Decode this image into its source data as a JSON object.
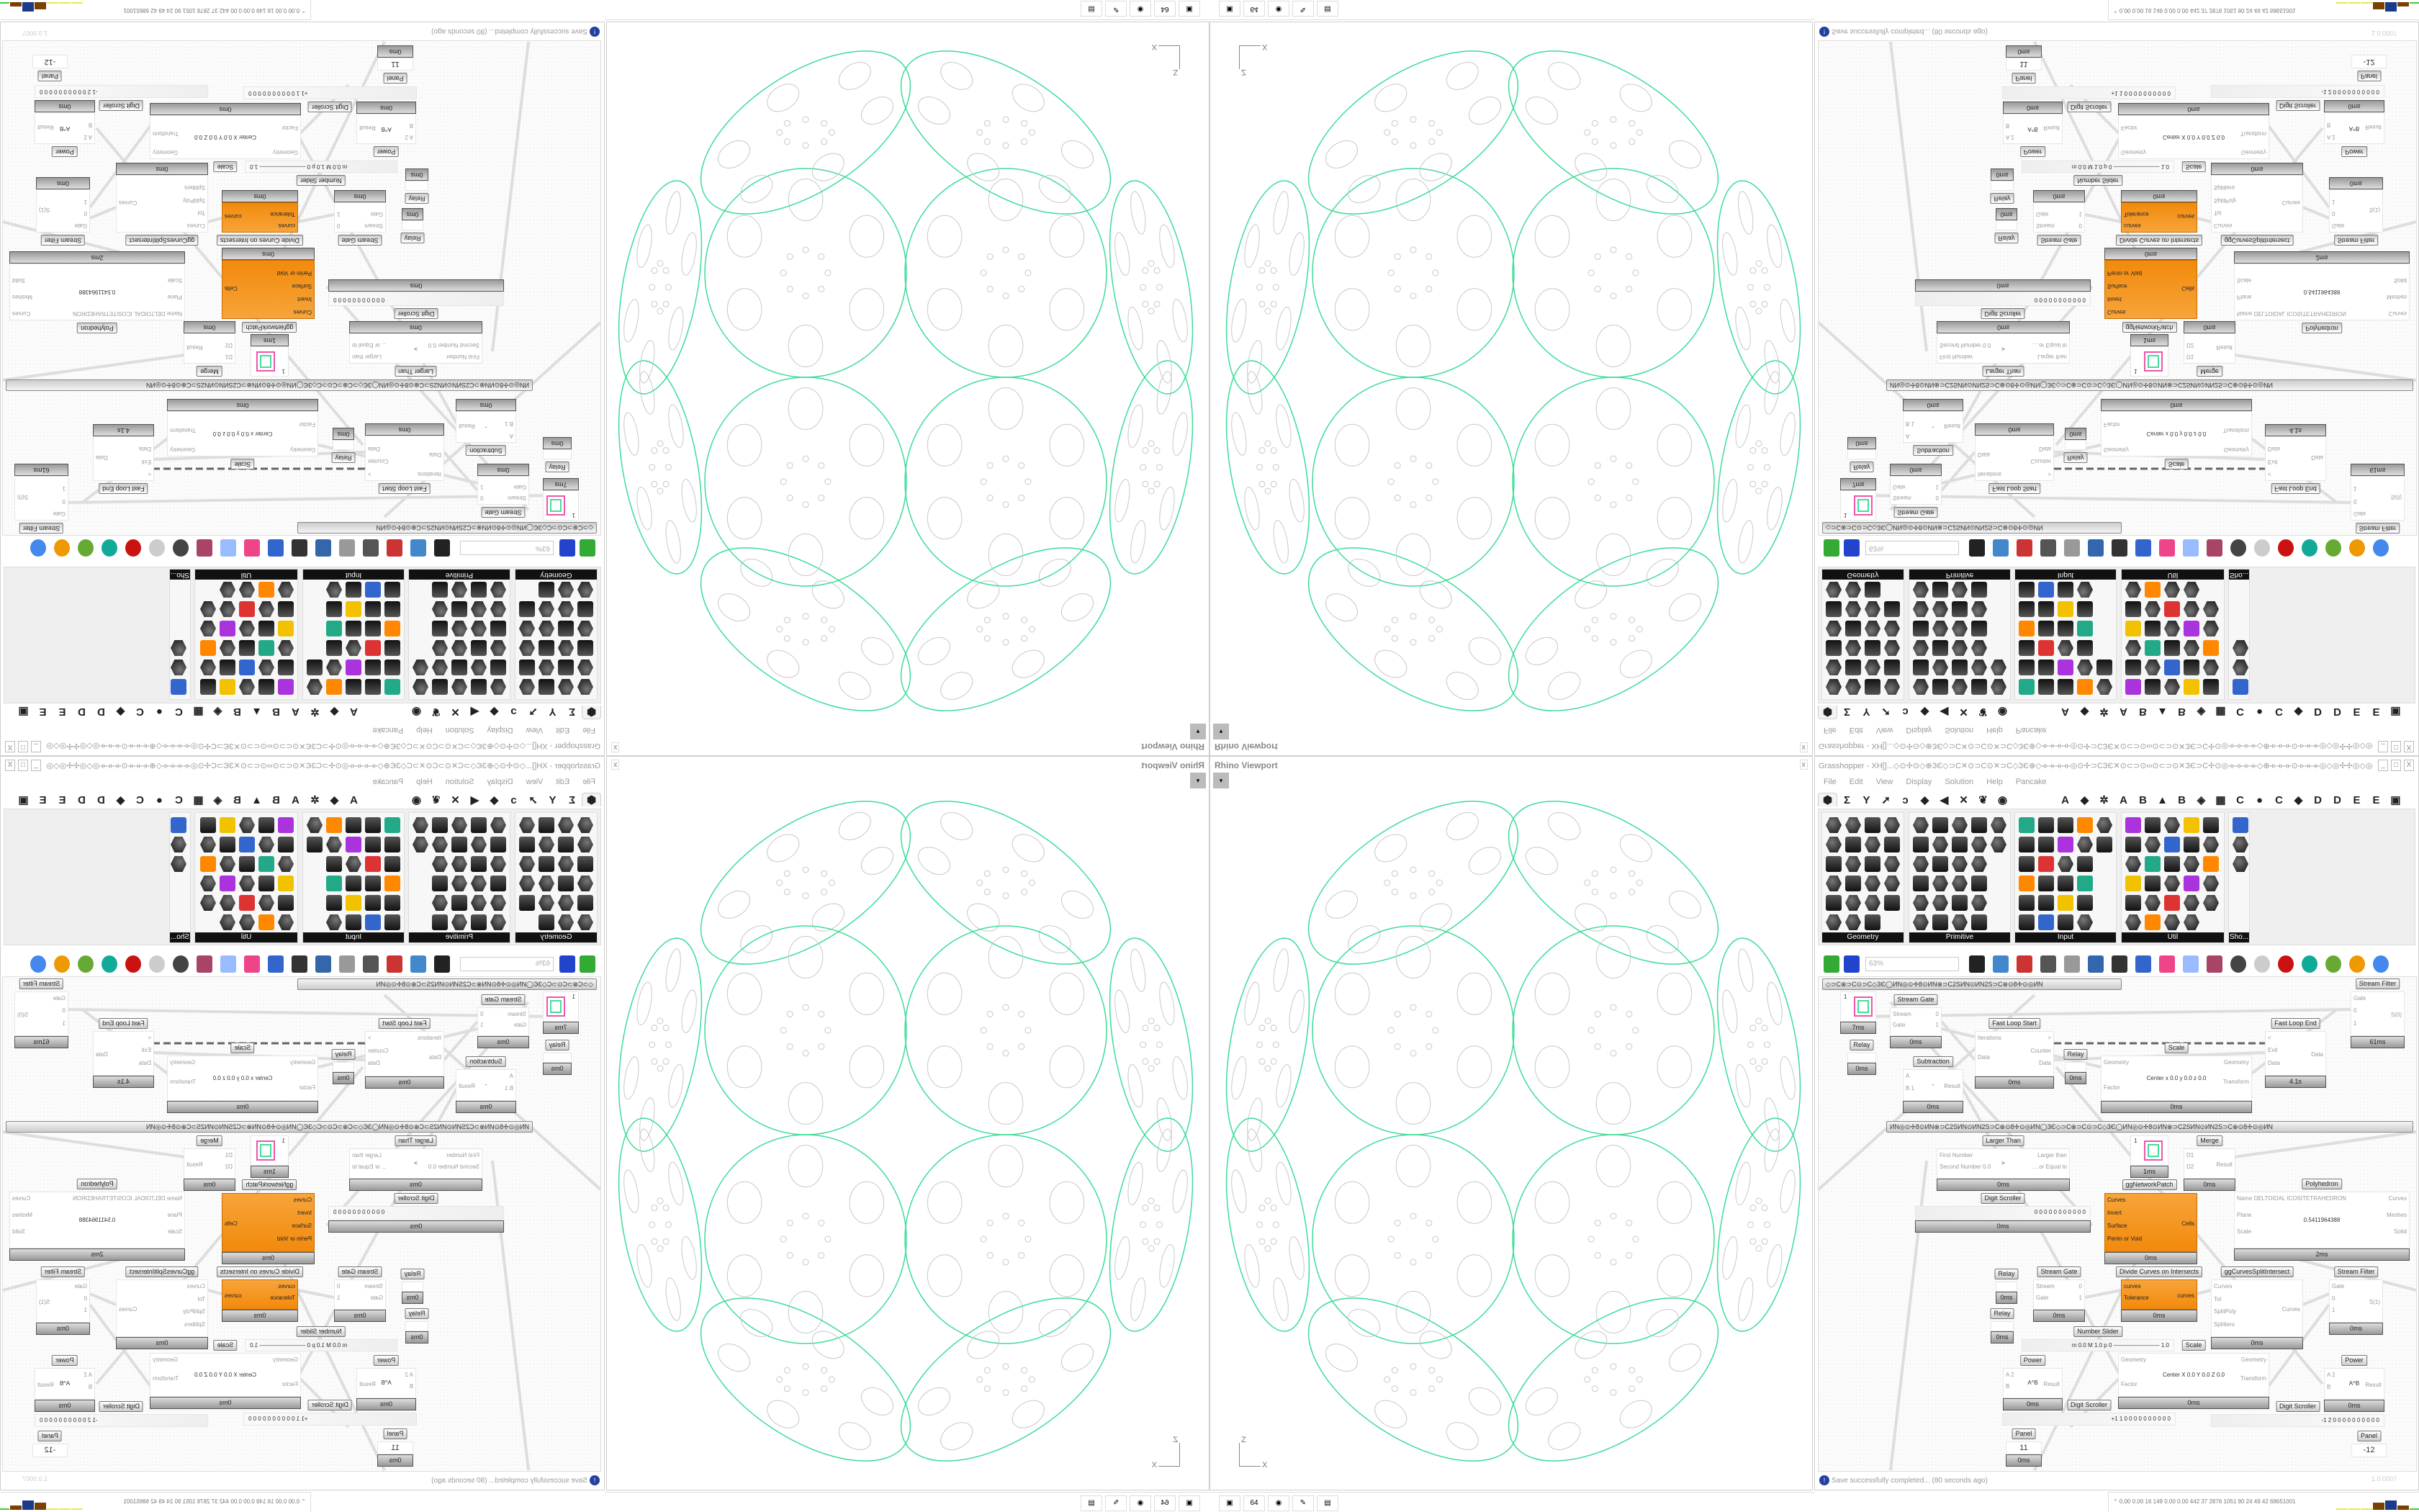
{
  "viewport": {
    "title": "Rhino Viewport",
    "close_label": "x",
    "dropdown_glyph": "▾",
    "axis_z": "Z",
    "axis_x": "X",
    "curve_color": "#3ddc97",
    "detail_color": "#c8c8c8"
  },
  "taskbar_left": {
    "icons": [
      "terminal-icon",
      "floppy-64-icon",
      "firefox-icon",
      "inkscape-icon",
      "calculator-icon"
    ],
    "glyphs": [
      "▣",
      "64",
      "◉",
      "✎",
      "▤"
    ]
  },
  "grasshopper": {
    "title": "Grasshopper - XH[]...◇⊙✢⊙◇⊕ЗЄ◇⊃C✕⊙⊃C⊙✕⊃C◇ЗЄ⊕◇⟛⟛⟛⟛◎⊙✢⊃CЗЄ✕⊙⊂⊃⊙∞⊙⊂⊃⊙✕ЗЄ⊃C✢⊙◎⟛⟛⟛⟛◇⊕⟛⟛⟛⊙⟛⟛⟛◎◇◎✢✢◎◇◎⟛⟛⊙⟛⟛⟛⊕◇⟛⟛⟛◎⊙✢⊃CЗЄ✕⊙⊂⊃⊙∞⊙⊂⊃",
    "window_buttons": [
      "_",
      "□",
      "X"
    ],
    "menu": [
      "File",
      "Edit",
      "View",
      "Display",
      "Solution",
      "Help",
      "Pancake"
    ],
    "tabs_left": [
      "⬢",
      "Σ",
      "Y",
      "➚",
      "ↄ",
      "◆",
      "◀",
      "✕",
      "❦",
      "◉"
    ],
    "tabs_right": [
      "A",
      "◆",
      "✲",
      "A",
      "B",
      "▲",
      "B",
      "◈",
      "▦",
      "C",
      "●",
      "C",
      "◆",
      "D",
      "D",
      "E",
      "E",
      "▣"
    ],
    "panels": [
      {
        "label": "Geometry"
      },
      {
        "label": "Primitive"
      },
      {
        "label": "Input"
      },
      {
        "label": "Util"
      },
      {
        "label": "Sho..."
      }
    ],
    "zoom_value": "63%",
    "group_bars": [
      "◇⊃C⊗⊃C⊙⊃C◇ЗЄ◯ИN◎⊙✢8⊙ИN⊗⊃C2SИN⊙ИN2S⊃C⊗⊙8✢⊙◎ИN",
      "ИN◎⊙✢8⊙ИN⊗⊃C2SИN⊙ИN2S⊃C⊗⊙8✢⊙◎ИN◯ЗЄ◇⊃C⊗⊃C⊙⊃C◇ЗЄ◯ИN◎⊙✢8⊙ИN⊗⊃C2SИN⊙ИN2S⊃C⊗⊙8✢⊙◎ИN"
    ],
    "nodes": [
      {
        "title": "Stream Gate",
        "inputs": [
          "Stream",
          "Gate"
        ],
        "outputs": [
          "0",
          "1"
        ],
        "time": "0ms"
      },
      {
        "title": "",
        "kind": "preview",
        "inputs": [],
        "outputs": [],
        "time": "7ms",
        "field": "1"
      },
      {
        "title": "Relay",
        "inputs": [],
        "outputs": [],
        "time": "0ms"
      },
      {
        "title": "Fast Loop Start",
        "inputs": [
          "Iterations",
          "Data"
        ],
        "outputs": [
          ">",
          "Counter",
          "Data"
        ],
        "time": "0ms"
      },
      {
        "title": "Relay",
        "inputs": [],
        "outputs": [],
        "time": "0ms"
      },
      {
        "title": "Subtraction",
        "inputs": [
          "A",
          "B 1"
        ],
        "outputs": [
          "Result"
        ],
        "time": "0ms",
        "field": "-"
      },
      {
        "title": "Scale",
        "inputs": [
          "Geometry",
          "",
          "Factor"
        ],
        "outputs": [
          "Geometry",
          "Transform"
        ],
        "time": "0ms",
        "field": "Center x 0.0 y 0.0 z 0.0"
      },
      {
        "title": "Fast Loop End",
        "inputs": [
          "<",
          "Exit",
          "Data"
        ],
        "outputs": [
          "Data"
        ],
        "time": "4.1s"
      },
      {
        "title": "Stream Filter",
        "inputs": [
          "Gate",
          "0",
          "1"
        ],
        "outputs": [
          "S(0)"
        ],
        "time": "61ms"
      },
      {
        "title": "Larger Than",
        "inputs": [
          "First Number",
          "Second Number 0.0"
        ],
        "outputs": [
          "Larger than",
          "... or Equal to"
        ],
        "time": "0ms",
        "field": ">"
      },
      {
        "title": "ggNetworkPatch",
        "kind": "preview",
        "inputs": [],
        "outputs": [],
        "time": "1ms",
        "field": "1"
      },
      {
        "title": "Merge",
        "inputs": [
          "D1",
          "D2"
        ],
        "outputs": [
          "Result"
        ],
        "time": "0ms"
      },
      {
        "title": "Polyhedron",
        "inputs": [
          "Name DELTOIDAL ICOSITETRAHEDRON",
          "Plane",
          "Scale"
        ],
        "outputs": [
          "Curves",
          "Meshes",
          "Solid"
        ],
        "time": "2ms",
        "field": "0.5411964388"
      },
      {
        "title": "Digit Scroller",
        "kind": "scroller",
        "inputs": [],
        "outputs": [],
        "time": "0ms",
        "field": "0 0 0 0 0 0 0 0 0 0 0"
      },
      {
        "title": "",
        "kind": "orange",
        "inputs": [
          "Curves",
          "Invert",
          "Surface",
          "Perim or Void"
        ],
        "outputs": [
          "Cells"
        ],
        "time": "0ms"
      },
      {
        "title": "Relay",
        "inputs": [],
        "outputs": [],
        "time": "0ms"
      },
      {
        "title": "Relay",
        "inputs": [],
        "outputs": [],
        "time": "0ms"
      },
      {
        "title": "Stream Gate",
        "inputs": [
          "Stream",
          "Gate"
        ],
        "outputs": [
          "0",
          "1"
        ],
        "time": "0ms"
      },
      {
        "title": "Divide Curves on Intersects",
        "kind": "orange",
        "inputs": [
          "curves",
          "Tolerance"
        ],
        "outputs": [
          "curves"
        ],
        "time": "0ms"
      },
      {
        "title": "ggCurvesSplitIntersect",
        "inputs": [
          "Curves",
          "Tol",
          "SplitPoly",
          "Splitters"
        ],
        "outputs": [
          "Curves"
        ],
        "time": "0ms"
      },
      {
        "title": "Stream Filter",
        "inputs": [
          "Gate",
          "0",
          "1"
        ],
        "outputs": [
          "S(1)"
        ],
        "time": "0ms"
      },
      {
        "title": "Number Slider",
        "kind": "slider",
        "inputs": [],
        "outputs": [],
        "time": "",
        "field": "m 0.0 M 1.0 p 0 ———————— 1.0"
      },
      {
        "title": "Scale",
        "inputs": [
          "Geometry",
          "",
          "Factor"
        ],
        "outputs": [
          "Geometry",
          "Transform"
        ],
        "time": "0ms",
        "field": "Center X 0.0 Y 0.0 Z 0.0"
      },
      {
        "title": "Power",
        "inputs": [
          "A 2",
          "B"
        ],
        "outputs": [
          "Result"
        ],
        "time": "0ms",
        "field": "A^B"
      },
      {
        "title": "Power",
        "inputs": [
          "A 2",
          "B"
        ],
        "outputs": [
          "Result"
        ],
        "time": "0ms",
        "field": "A^B"
      },
      {
        "title": "Digit Scroller",
        "kind": "scroller",
        "inputs": [],
        "outputs": [],
        "time": "",
        "field": "+1 1 0 0 0 0 0 0 0 0 0 0"
      },
      {
        "title": "Digit Scroller",
        "kind": "scroller",
        "inputs": [],
        "outputs": [],
        "time": "",
        "field": "-1 2 0 0 0 0 0 0 0 0 0 0"
      },
      {
        "title": "Panel",
        "kind": "panel",
        "inputs": [],
        "outputs": [],
        "time": "0ms",
        "field": "11"
      },
      {
        "title": "Panel",
        "kind": "panel",
        "inputs": [],
        "outputs": [],
        "time": "",
        "field": "-12"
      }
    ],
    "status": {
      "info_glyph": "!",
      "message": "Save successfully completed... (80 seconds ago)",
      "version": "1.0.0007"
    }
  },
  "taskbar_right": {
    "stats": "⌃ 0.00 0.00 16 149 0.00 0.00 442 37 2876 1051 90 24 49 42 68651001",
    "bar_colors": [
      "#e8e84a",
      "#e8e84a",
      "#e8e84a",
      "#7a4000",
      "#1a3a8a",
      "#7a4000",
      "#3ccc3c",
      "#8b0000"
    ]
  }
}
